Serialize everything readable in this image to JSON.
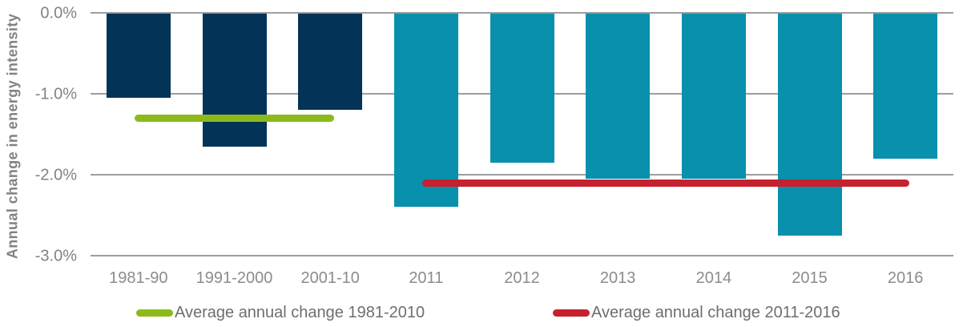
{
  "chart_data": {
    "type": "bar",
    "title": "",
    "ylabel": "Annual change in energy intensity",
    "xlabel": "",
    "categories": [
      "1981-90",
      "1991-2000",
      "2001-10",
      "2011",
      "2012",
      "2013",
      "2014",
      "2015",
      "2016"
    ],
    "values": [
      -1.05,
      -1.65,
      -1.2,
      -2.4,
      -1.85,
      -2.05,
      -2.05,
      -2.75,
      -1.8
    ],
    "bar_groups": [
      "past",
      "past",
      "past",
      "recent",
      "recent",
      "recent",
      "recent",
      "recent",
      "recent"
    ],
    "group_colors": {
      "past": "#033458",
      "recent": "#0890AC"
    },
    "y_ticks": [
      "0.0%",
      "-1.0%",
      "-2.0%",
      "-3.0%"
    ],
    "ylim": [
      -3,
      0
    ],
    "grid": true,
    "gridline_color": "#9C9EA0",
    "legend_position": "bottom",
    "avg_lines": [
      {
        "label": "Average annual change 1981-2010",
        "value": -1.3,
        "color": "#8CBA1C",
        "span_category_indexes": [
          0,
          2
        ]
      },
      {
        "label": "Average annual change 2011-2016",
        "value": -2.1,
        "color": "#C5212E",
        "span_category_indexes": [
          3,
          8
        ]
      }
    ]
  }
}
